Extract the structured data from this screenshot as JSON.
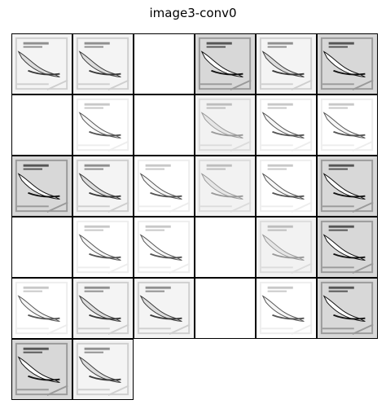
{
  "figure": {
    "title": "image3-conv0"
  },
  "feature_maps": [
    {
      "id": 1,
      "intensity": "mid"
    },
    {
      "id": 2,
      "intensity": "mid"
    },
    {
      "id": 3,
      "intensity": "blank"
    },
    {
      "id": 4,
      "intensity": "dark"
    },
    {
      "id": 5,
      "intensity": "mid"
    },
    {
      "id": 6,
      "intensity": "dark"
    },
    {
      "id": 7,
      "intensity": "blank"
    },
    {
      "id": 8,
      "intensity": "faint"
    },
    {
      "id": 9,
      "intensity": "blank"
    },
    {
      "id": 10,
      "intensity": "light"
    },
    {
      "id": 11,
      "intensity": "faint"
    },
    {
      "id": 12,
      "intensity": "faint"
    },
    {
      "id": 13,
      "intensity": "dark"
    },
    {
      "id": 14,
      "intensity": "mid"
    },
    {
      "id": 15,
      "intensity": "faint"
    },
    {
      "id": 16,
      "intensity": "light"
    },
    {
      "id": 17,
      "intensity": "faint"
    },
    {
      "id": 18,
      "intensity": "dark"
    },
    {
      "id": 19,
      "intensity": "blank"
    },
    {
      "id": 20,
      "intensity": "faint"
    },
    {
      "id": 21,
      "intensity": "faint"
    },
    {
      "id": 22,
      "intensity": "blank"
    },
    {
      "id": 23,
      "intensity": "light"
    },
    {
      "id": 24,
      "intensity": "dark"
    },
    {
      "id": 25,
      "intensity": "faint"
    },
    {
      "id": 26,
      "intensity": "mid"
    },
    {
      "id": 27,
      "intensity": "mid"
    },
    {
      "id": 28,
      "intensity": "blank"
    },
    {
      "id": 29,
      "intensity": "faint"
    },
    {
      "id": 30,
      "intensity": "dark"
    },
    {
      "id": 31,
      "intensity": "dark"
    },
    {
      "id": 32,
      "intensity": "mid"
    }
  ]
}
